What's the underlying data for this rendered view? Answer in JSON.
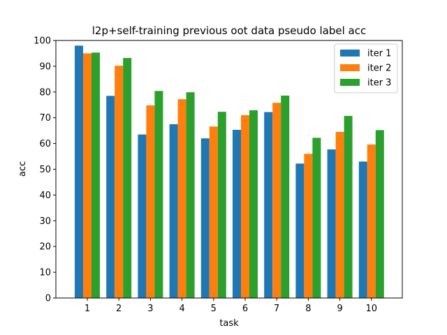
{
  "chart_data": {
    "type": "bar",
    "title": "l2p+self-training previous oot data pseudo label acc",
    "xlabel": "task",
    "ylabel": "acc",
    "categories": [
      "1",
      "2",
      "3",
      "4",
      "5",
      "6",
      "7",
      "8",
      "9",
      "10"
    ],
    "ylim": [
      0,
      100
    ],
    "yticks": [
      "0",
      "10",
      "20",
      "30",
      "40",
      "50",
      "60",
      "70",
      "80",
      "90",
      "100"
    ],
    "grid": false,
    "legend_position": "top-right",
    "series": [
      {
        "name": "iter 1",
        "color": "#1f77b4",
        "values": [
          98.0,
          78.5,
          63.5,
          67.5,
          62.0,
          65.3,
          72.2,
          52.2,
          57.7,
          53.0
        ]
      },
      {
        "name": "iter 2",
        "color": "#ff7f0e",
        "values": [
          95.0,
          90.2,
          74.8,
          77.2,
          66.6,
          71.0,
          75.8,
          56.0,
          64.5,
          59.6
        ]
      },
      {
        "name": "iter 3",
        "color": "#2ca02c",
        "values": [
          95.3,
          93.2,
          80.4,
          79.9,
          72.3,
          72.9,
          78.6,
          62.2,
          70.7,
          65.2
        ]
      }
    ]
  }
}
